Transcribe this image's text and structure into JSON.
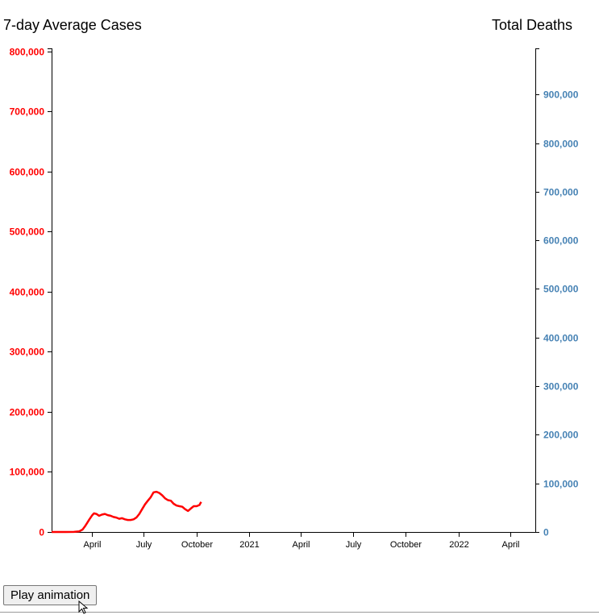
{
  "chart_data": {
    "type": "line",
    "title_left": "7-day Average Cases",
    "title_right": "Total Deaths",
    "colors": {
      "cases": "#ff0000",
      "deaths": "#4682b4",
      "axis": "#000000"
    },
    "y_left": {
      "ylim": [
        0,
        805000
      ],
      "ticks": [
        0,
        100000,
        200000,
        300000,
        400000,
        500000,
        600000,
        700000,
        800000
      ],
      "tick_labels": [
        "0",
        "100,000",
        "200,000",
        "300,000",
        "400,000",
        "500,000",
        "600,000",
        "700,000",
        "800,000"
      ]
    },
    "y_right": {
      "ylim": [
        0,
        995000
      ],
      "ticks": [
        0,
        100000,
        200000,
        300000,
        400000,
        500000,
        600000,
        700000,
        800000,
        900000
      ],
      "tick_labels": [
        "0",
        "100,000",
        "200,000",
        "300,000",
        "400,000",
        "500,000",
        "600,000",
        "700,000",
        "800,000",
        "900,000"
      ]
    },
    "x_axis": {
      "xlim": [
        "2020-01-22",
        "2022-05-15"
      ],
      "ticks": [
        "2020-04-01",
        "2020-07-01",
        "2020-10-01",
        "2021-01-01",
        "2021-04-01",
        "2021-07-01",
        "2021-10-01",
        "2022-01-01",
        "2022-04-01"
      ],
      "tick_labels": [
        "April",
        "July",
        "October",
        "2021",
        "April",
        "July",
        "October",
        "2022",
        "April"
      ]
    },
    "series": [
      {
        "key": "cases",
        "axis": "left",
        "x": [
          "2020-01-22",
          "2020-02-15",
          "2020-03-01",
          "2020-03-10",
          "2020-03-16",
          "2020-03-20",
          "2020-03-24",
          "2020-03-28",
          "2020-04-02",
          "2020-04-05",
          "2020-04-09",
          "2020-04-14",
          "2020-04-19",
          "2020-04-24",
          "2020-04-29",
          "2020-05-04",
          "2020-05-09",
          "2020-05-14",
          "2020-05-19",
          "2020-05-24",
          "2020-05-29",
          "2020-06-03",
          "2020-06-08",
          "2020-06-13",
          "2020-06-18",
          "2020-06-23",
          "2020-06-28",
          "2020-07-03",
          "2020-07-08",
          "2020-07-13",
          "2020-07-18",
          "2020-07-23",
          "2020-07-28",
          "2020-08-02",
          "2020-08-07",
          "2020-08-12",
          "2020-08-17",
          "2020-08-22",
          "2020-08-27",
          "2020-09-01",
          "2020-09-06",
          "2020-09-11",
          "2020-09-16",
          "2020-09-21",
          "2020-09-26",
          "2020-10-01",
          "2020-10-06",
          "2020-10-09"
        ],
        "values": [
          0,
          0,
          100,
          1000,
          4000,
          9000,
          15000,
          21000,
          28000,
          31000,
          30000,
          27000,
          29000,
          30000,
          28000,
          27000,
          25000,
          24000,
          22000,
          23000,
          21000,
          20000,
          20000,
          21000,
          24000,
          30000,
          38000,
          46000,
          52000,
          58000,
          66000,
          67000,
          65000,
          61000,
          56000,
          53000,
          52000,
          47000,
          44000,
          43000,
          42000,
          38000,
          35000,
          39000,
          43000,
          43000,
          45000,
          50000
        ]
      },
      {
        "key": "deaths",
        "axis": "right",
        "x": [],
        "values": []
      }
    ]
  },
  "controls": {
    "play_label": "Play animation"
  }
}
